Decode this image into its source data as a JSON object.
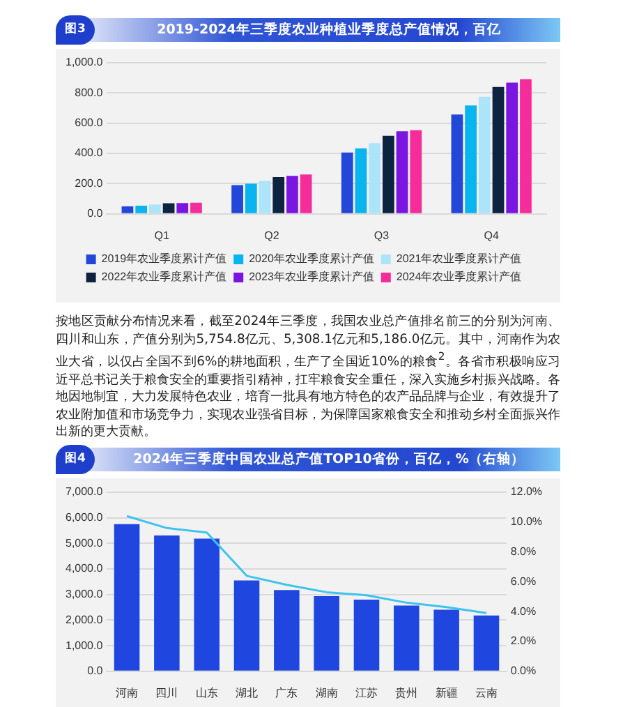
{
  "chart_data": [
    {
      "type": "bar",
      "title": "2019-2024年三季度农业种植业季度总产值情况，百亿",
      "categories": [
        "Q1",
        "Q2",
        "Q3",
        "Q4"
      ],
      "series": [
        {
          "name": "2019年农业季度累计产值",
          "color": "#2347d8",
          "values": [
            50,
            190,
            406,
            658
          ]
        },
        {
          "name": "2020年农业季度累计产值",
          "color": "#0ab4ee",
          "values": [
            55,
            200,
            434,
            717
          ]
        },
        {
          "name": "2021年农业季度累计产值",
          "color": "#ace4fa",
          "values": [
            62,
            218,
            468,
            775
          ]
        },
        {
          "name": "2022年农业季度累计产值",
          "color": "#0e2340",
          "values": [
            70,
            243,
            517,
            840
          ]
        },
        {
          "name": "2023年农业季度累计产值",
          "color": "#7b16e0",
          "values": [
            72,
            252,
            547,
            868
          ]
        },
        {
          "name": "2024年农业季度累计产值",
          "color": "#f52d9a",
          "values": [
            74,
            261,
            554,
            892
          ]
        }
      ],
      "ylim": [
        0,
        1000
      ],
      "yticks": [
        {
          "value": 0,
          "label": "0.0"
        },
        {
          "value": 200,
          "label": "200.0"
        },
        {
          "value": 400,
          "label": "400.0"
        },
        {
          "value": 600,
          "label": "600.0"
        },
        {
          "value": 800,
          "label": "800.0"
        },
        {
          "value": 1000,
          "label": "1,000.0"
        }
      ],
      "grid": "y",
      "legend": "bottom",
      "annotations": [
        "图3",
        "按地区贡献分布情况来看，截至2024年三季度，我国农业总产值排名前三的分别为河南、四川和山东，产值分别为5,754.8亿元、5,308.1亿元和5,186.0亿元。其中，河南作为农业大省，以仅占全国不到6%的耕地面积，生产了全国近10%的粮食$^{2}$。各省市积极响应习近平总书记关于粮食安全的重要指引精神，扛牢粮食安全重任，深入实施乡村振兴战略。各地因地制宜，大力发展特色农业，培育一批具有地方特色的农产品品牌与企业，有效提升了农业附加值和市场竞争力，实现农业强省目标，为保障国家粮食安全和推动乡村全面振兴作出新的更大贡献。"
      ]
    },
    {
      "type": "bar",
      "title": "2024年三季度中国农业总产值TOP10省份，百亿，%（右轴）",
      "categories": [
        "河南",
        "四川",
        "山东",
        "湖北",
        "广东",
        "湖南",
        "江苏",
        "贵州",
        "新疆",
        "云南"
      ],
      "series": [
        {
          "color": "#1f47e0",
          "values": [
            5750,
            5310,
            5190,
            3550,
            3180,
            2940,
            2800,
            2570,
            2410,
            2180
          ]
        },
        {
          "type": "line",
          "axis": "y2",
          "color": "#3ec3ee",
          "values": [
            10.4,
            9.6,
            9.3,
            6.4,
            5.8,
            5.3,
            5.1,
            4.6,
            4.3,
            3.9
          ]
        }
      ],
      "ylim": [
        0,
        7000
      ],
      "yticks": [
        {
          "value": 0,
          "label": "0.0"
        },
        {
          "value": 1000,
          "label": "1,000.0"
        },
        {
          "value": 2000,
          "label": "2,000.0"
        },
        {
          "value": 3000,
          "label": "3,000.0"
        },
        {
          "value": 4000,
          "label": "4,000.0"
        },
        {
          "value": 5000,
          "label": "5,000.0"
        },
        {
          "value": 6000,
          "label": "6,000.0"
        },
        {
          "value": 7000,
          "label": "7,000.0"
        }
      ],
      "y2lim": [
        0,
        12
      ],
      "y2ticks": [
        {
          "value": 0,
          "label": "0.0%"
        },
        {
          "value": 2,
          "label": "2.0%"
        },
        {
          "value": 4,
          "label": "4.0%"
        },
        {
          "value": 6,
          "label": "6.0%"
        },
        {
          "value": 8,
          "label": "8.0%"
        },
        {
          "value": 10,
          "label": "10.0%"
        },
        {
          "value": 12,
          "label": "12.0%"
        }
      ],
      "grid": "y",
      "marker": "none",
      "annotations": [
        "图4"
      ]
    }
  ]
}
